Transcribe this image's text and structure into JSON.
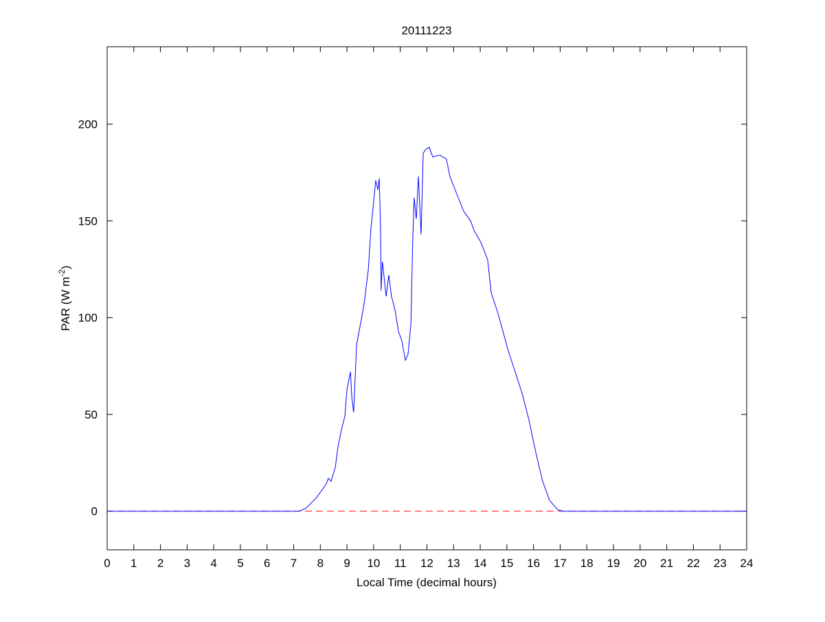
{
  "chart_data": {
    "type": "line",
    "title": "20111223",
    "xlabel": "Local Time (decimal hours)",
    "ylabel": {
      "main": "PAR (W m",
      "sup": "-2",
      "end": ")"
    },
    "xlim": [
      0,
      24
    ],
    "ylim": [
      -20,
      240
    ],
    "xticks": [
      0,
      1,
      2,
      3,
      4,
      5,
      6,
      7,
      8,
      9,
      10,
      11,
      12,
      13,
      14,
      15,
      16,
      17,
      18,
      19,
      20,
      21,
      22,
      23,
      24
    ],
    "yticks": [
      0,
      50,
      100,
      150,
      200
    ],
    "grid": false,
    "series": [
      {
        "color": "#0000ff",
        "style": "solid",
        "x": [
          0,
          7.2,
          7.45,
          7.84,
          8.22,
          8.3,
          8.4,
          8.56,
          8.66,
          8.79,
          8.92,
          9.0,
          9.13,
          9.18,
          9.25,
          9.36,
          9.51,
          9.64,
          9.8,
          9.9,
          10.03,
          10.08,
          10.16,
          10.21,
          10.26,
          10.28,
          10.33,
          10.47,
          10.57,
          10.67,
          10.8,
          10.93,
          11.06,
          11.19,
          11.29,
          11.4,
          11.47,
          11.52,
          11.6,
          11.68,
          11.78,
          11.86,
          11.96,
          12.09,
          12.22,
          12.48,
          12.73,
          12.86,
          13.12,
          13.38,
          13.64,
          13.77,
          14.02,
          14.28,
          14.41,
          14.67,
          15.05,
          15.57,
          15.83,
          16.09,
          16.34,
          16.6,
          16.91,
          17.1,
          24
        ],
        "y": [
          0,
          0,
          1.4,
          6.7,
          14,
          17,
          15.5,
          22.6,
          33,
          42,
          49,
          63,
          72,
          59,
          51,
          86,
          97,
          107,
          125,
          146,
          164,
          171,
          166,
          172,
          146,
          114,
          129,
          111,
          122,
          111,
          104,
          93,
          88,
          78,
          81,
          97,
          141,
          162,
          151,
          173,
          143,
          185,
          187,
          188,
          183,
          184,
          182,
          173,
          164,
          155,
          150,
          145,
          139,
          130,
          113,
          102,
          83,
          61,
          47,
          30,
          15.5,
          5.6,
          0.7,
          0,
          0
        ]
      },
      {
        "color": "#ff0000",
        "style": "dashed",
        "x": [
          0,
          24
        ],
        "y": [
          0,
          0
        ]
      }
    ]
  }
}
